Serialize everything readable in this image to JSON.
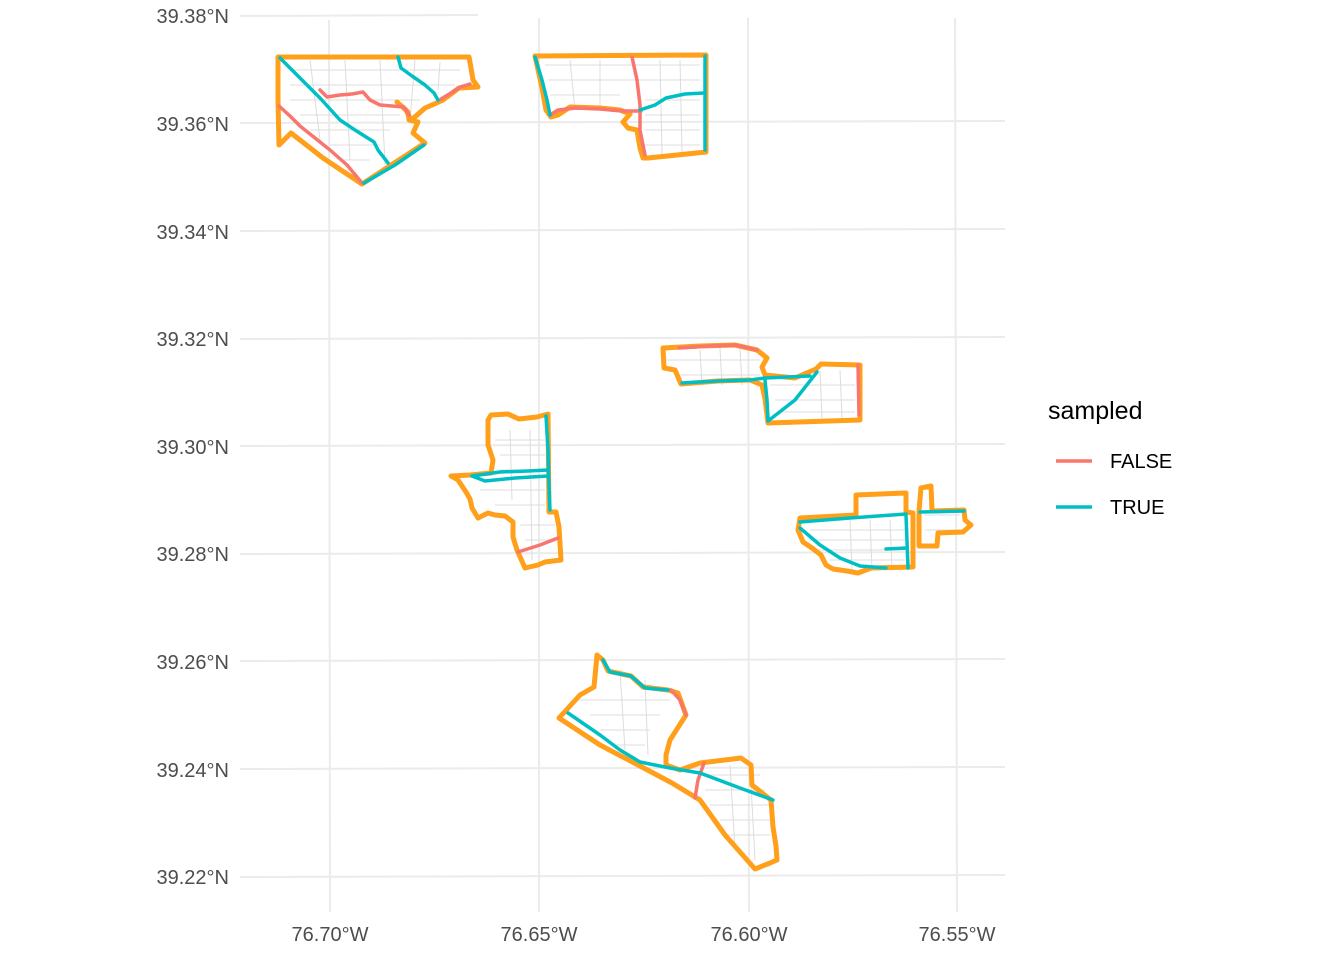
{
  "map": {
    "x_ticks": [
      "76.70°W",
      "76.65°W",
      "76.60°W",
      "76.55°W"
    ],
    "y_ticks": [
      "39.38°N",
      "39.36°N",
      "39.34°N",
      "39.32°N",
      "39.30°N",
      "39.28°N",
      "39.26°N",
      "39.24°N",
      "39.22°N"
    ],
    "legend": {
      "title": "sampled",
      "items": [
        {
          "label": "FALSE",
          "color": "#f8766d"
        },
        {
          "label": "TRUE",
          "color": "#00bfc4"
        }
      ]
    },
    "colors": {
      "boundary": "#ff9f1a",
      "false": "#f8766d",
      "true": "#00bfc4",
      "streets": "#dcdcdc"
    }
  }
}
